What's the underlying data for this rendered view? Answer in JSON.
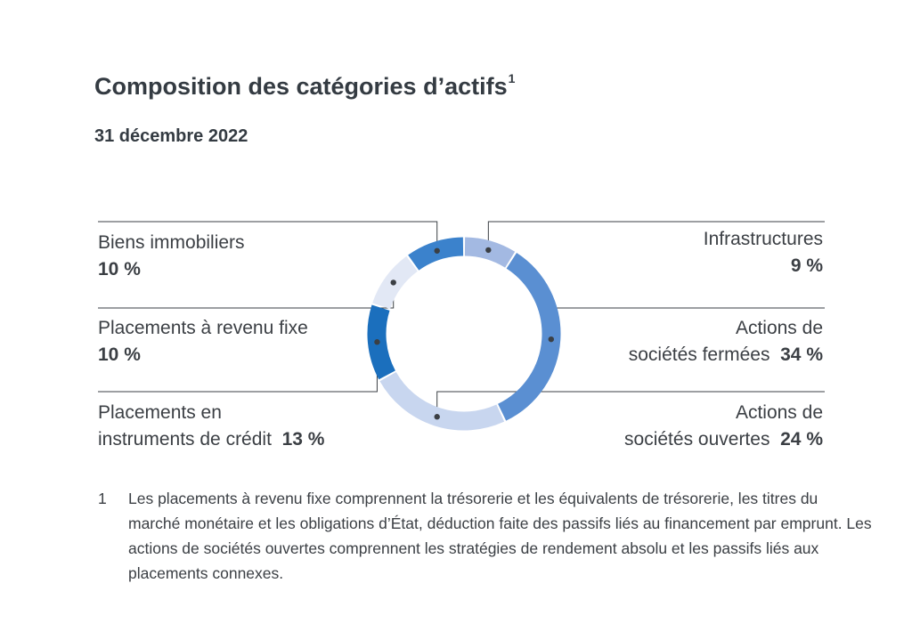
{
  "title": "Composition des catégories d’actifs",
  "title_sup": "1",
  "subtitle": "31 décembre 2022",
  "chart_data": {
    "type": "pie",
    "style": "donut",
    "slices": [
      {
        "label": "Infrastructures",
        "value": 9,
        "display": "9 %",
        "color": "#a3b9e2"
      },
      {
        "label": "Actions de sociétés fermées",
        "value": 34,
        "display": "34 %",
        "color": "#5a8fd2"
      },
      {
        "label": "Actions de sociétés ouvertes",
        "value": 24,
        "display": "24 %",
        "color": "#c8d6ef"
      },
      {
        "label": "Placements en instruments de crédit",
        "value": 13,
        "display": "13 %",
        "color": "#1b6fbd"
      },
      {
        "label": "Placements à revenu fixe",
        "value": 10,
        "display": "10 %",
        "color": "#e2e8f5"
      },
      {
        "label": "Biens immobiliers",
        "value": 10,
        "display": "10 %",
        "color": "#3b82cc"
      }
    ]
  },
  "labels": {
    "infrastructures": {
      "name": "Infrastructures",
      "pct": "9 %"
    },
    "actions_fermees": {
      "line1": "Actions de",
      "line2": "sociétés fermées",
      "pct": "34 %"
    },
    "actions_ouvertes": {
      "line1": "Actions de",
      "line2": "sociétés ouvertes",
      "pct": "24 %"
    },
    "credit": {
      "line1": "Placements en",
      "line2": "instruments de crédit",
      "pct": "13 %"
    },
    "revenu_fixe": {
      "name": "Placements à revenu fixe",
      "pct": "10 %"
    },
    "immobiliers": {
      "name": "Biens immobiliers",
      "pct": "10 %"
    }
  },
  "footnote": {
    "number": "1",
    "text": "Les placements à revenu fixe comprennent la trésorerie et les équivalents de trésorerie, les titres du marché monétaire et les obligations d’État, déduction faite des passifs liés au financement par emprunt. Les actions de sociétés ouvertes comprennent les stratégies de rendement absolu et les passifs liés aux placements connexes."
  }
}
